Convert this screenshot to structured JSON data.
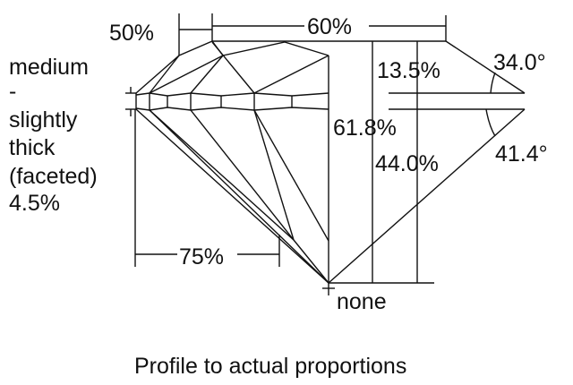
{
  "labels": {
    "crown_height_pct": "50%",
    "table_pct": "60%",
    "girdle_lines": [
      "medium",
      "-",
      "slightly",
      "thick",
      "(faceted)",
      "4.5%"
    ],
    "crown_depth": "13.5%",
    "crown_angle": "34.0°",
    "total_depth": "61.8%",
    "pavilion_depth": "44.0%",
    "pavilion_angle": "41.4°",
    "lower_half_pct": "75%",
    "culet": "none"
  },
  "caption": "Profile to actual proportions",
  "colors": {
    "line": "#111111",
    "background": "#ffffff"
  }
}
